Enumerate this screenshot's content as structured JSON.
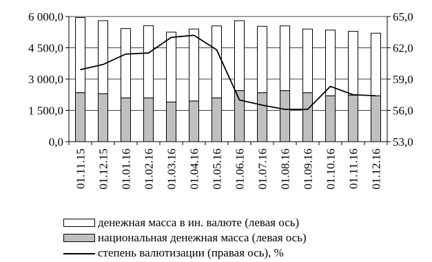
{
  "chart_data": {
    "type": "bar",
    "categories": [
      "01.11.15",
      "01.12.15",
      "01.01.16",
      "01.02.16",
      "01.03.16",
      "01.04.16",
      "01.05.16",
      "01.06.16",
      "01.07.16",
      "01.08.16",
      "01.09.16",
      "01.10.16",
      "01.11.16",
      "01.12.16"
    ],
    "series": [
      {
        "name": "денежная масса в ин. валюте (левая ось)",
        "kind": "stacked-bar",
        "axis": "left",
        "color": "#ffffff",
        "values": [
          3600,
          3500,
          3320,
          3460,
          3350,
          3450,
          3450,
          3350,
          3180,
          3100,
          3050,
          3150,
          3060,
          3000
        ]
      },
      {
        "name": "национальная денежная масса (левая ось)",
        "kind": "stacked-bar",
        "axis": "left",
        "color": "#bfbfbf",
        "values": [
          2350,
          2300,
          2100,
          2100,
          1900,
          1950,
          2100,
          2450,
          2350,
          2450,
          2350,
          2200,
          2230,
          2200
        ]
      },
      {
        "name": "степень валютизации (правая ось), %",
        "kind": "line",
        "axis": "right",
        "color": "#000000",
        "values": [
          59.9,
          60.4,
          61.4,
          61.5,
          63.0,
          63.2,
          61.8,
          57.0,
          56.5,
          56.1,
          56.1,
          58.3,
          57.5,
          57.4
        ]
      }
    ],
    "left_axis": {
      "min": 0,
      "max": 6000,
      "ticks": [
        "0,0",
        "1 500,0",
        "3 000,0",
        "4 500,0",
        "6 000,0"
      ]
    },
    "right_axis": {
      "min": 53,
      "max": 65,
      "ticks": [
        "53,0",
        "56,0",
        "59,0",
        "62,0",
        "65,0"
      ]
    },
    "grid": true,
    "legend_position": "bottom"
  }
}
